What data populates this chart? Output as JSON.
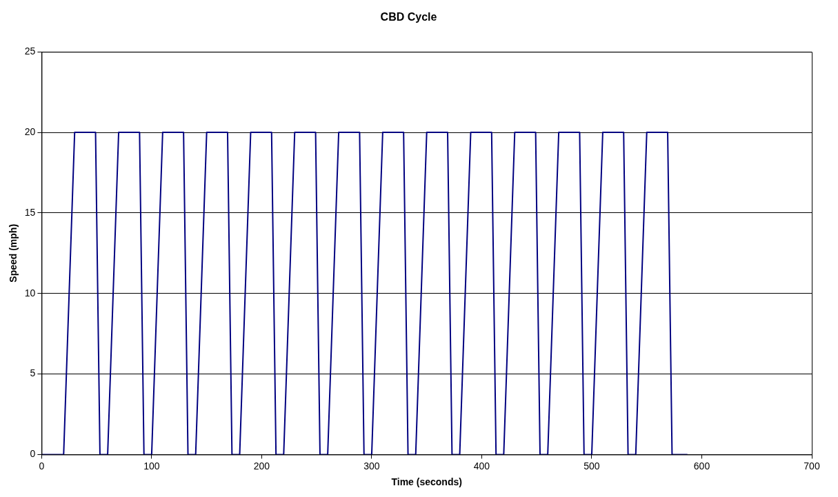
{
  "chart_data": {
    "type": "line",
    "title": "CBD Cycle",
    "xlabel": "Time (seconds)",
    "ylabel": "Speed (mph)",
    "x": [
      0,
      20,
      30,
      49,
      53,
      60,
      70,
      89,
      93,
      100,
      110,
      129,
      133,
      140,
      150,
      169,
      173,
      180,
      190,
      209,
      213,
      220,
      230,
      249,
      253,
      260,
      270,
      289,
      293,
      300,
      310,
      329,
      333,
      340,
      350,
      369,
      373,
      380,
      390,
      409,
      413,
      420,
      430,
      449,
      453,
      460,
      470,
      489,
      493,
      500,
      510,
      529,
      533,
      540,
      550,
      569,
      573,
      587
    ],
    "series": [
      {
        "color": "#000080",
        "values": [
          0,
          0,
          20,
          20,
          0,
          0,
          20,
          20,
          0,
          0,
          20,
          20,
          0,
          0,
          20,
          20,
          0,
          0,
          20,
          20,
          0,
          0,
          20,
          20,
          0,
          0,
          20,
          20,
          0,
          0,
          20,
          20,
          0,
          0,
          20,
          20,
          0,
          0,
          20,
          20,
          0,
          0,
          20,
          20,
          0,
          0,
          20,
          20,
          0,
          0,
          20,
          20,
          0,
          0,
          20,
          20,
          0,
          0
        ]
      }
    ],
    "xlim": [
      0,
      700
    ],
    "xticks": [
      0,
      100,
      200,
      300,
      400,
      500,
      600,
      700
    ],
    "ylim": [
      0,
      25
    ],
    "yticks": [
      0,
      5,
      10,
      15,
      20,
      25
    ],
    "grid": "y",
    "legend": false,
    "marker": "none",
    "line_style": "solid"
  }
}
